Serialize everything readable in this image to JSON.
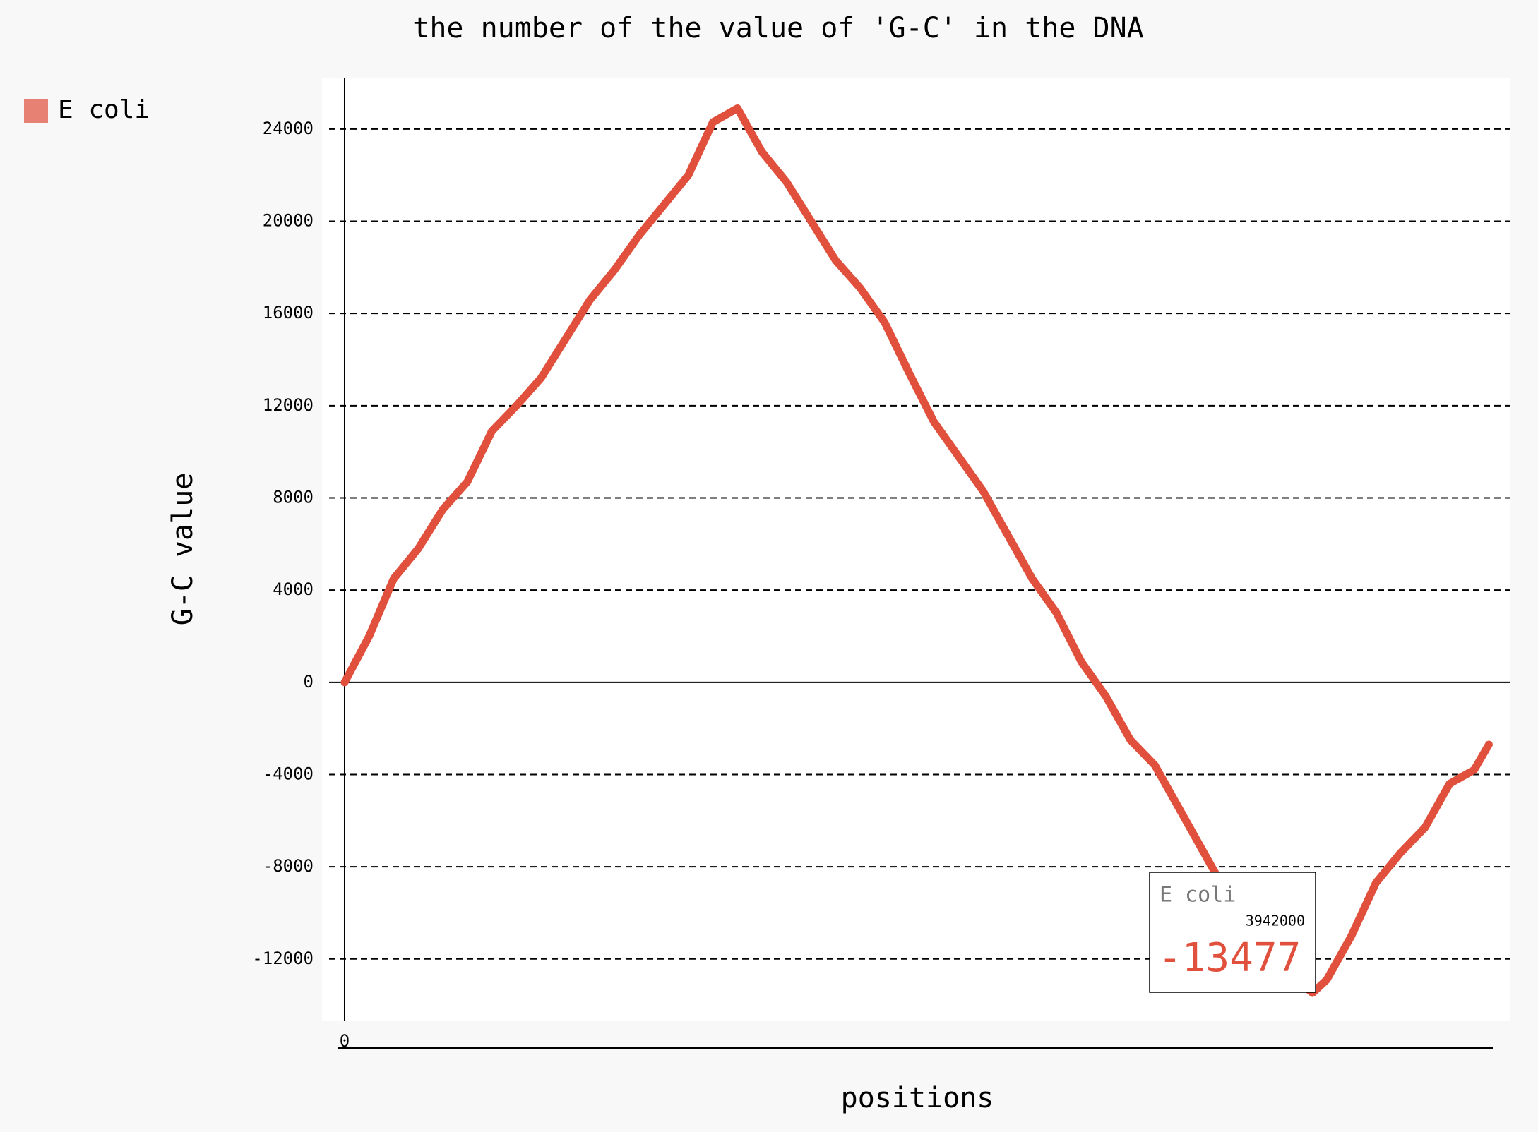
{
  "chart_data": {
    "type": "line",
    "title": "the number of the value of 'G-C' in the DNA",
    "x_label": "positions",
    "y_label": "G-C value",
    "x": [
      0,
      100000,
      200000,
      300000,
      400000,
      500000,
      600000,
      700000,
      800000,
      900000,
      1000000,
      1100000,
      1200000,
      1300000,
      1400000,
      1500000,
      1600000,
      1700000,
      1800000,
      1900000,
      2000000,
      2100000,
      2200000,
      2300000,
      2400000,
      2500000,
      2600000,
      2700000,
      2800000,
      2900000,
      3000000,
      3100000,
      3200000,
      3300000,
      3400000,
      3500000,
      3600000,
      3700000,
      3800000,
      3900000,
      3942000,
      4000000,
      4100000,
      4200000,
      4300000,
      4400000,
      4500000,
      4600000,
      4660000
    ],
    "series": [
      {
        "name": "E coli",
        "color": "#e0503c",
        "values": [
          0,
          2000,
          4500,
          5800,
          7500,
          8700,
          10900,
          12000,
          13200,
          14900,
          16600,
          17900,
          19400,
          20700,
          22000,
          24300,
          24900,
          23000,
          21700,
          20000,
          18300,
          17100,
          15600,
          13400,
          11300,
          9800,
          8300,
          6400,
          4500,
          3000,
          900,
          -600,
          -2500,
          -3600,
          -5500,
          -7400,
          -9300,
          -10800,
          -12300,
          -13100,
          -13477,
          -12900,
          -11000,
          -8700,
          -7400,
          -6300,
          -4400,
          -3800,
          -2700
        ]
      }
    ],
    "xlim": [
      -92000,
      4748000
    ],
    "xticks": [
      0
    ],
    "ylim": [
      -14700,
      26200
    ],
    "yticks": [
      -12000,
      -8000,
      -4000,
      0,
      4000,
      8000,
      12000,
      16000,
      20000,
      24000
    ],
    "grid": true,
    "legend": "top-left",
    "tooltip_index": 40
  }
}
